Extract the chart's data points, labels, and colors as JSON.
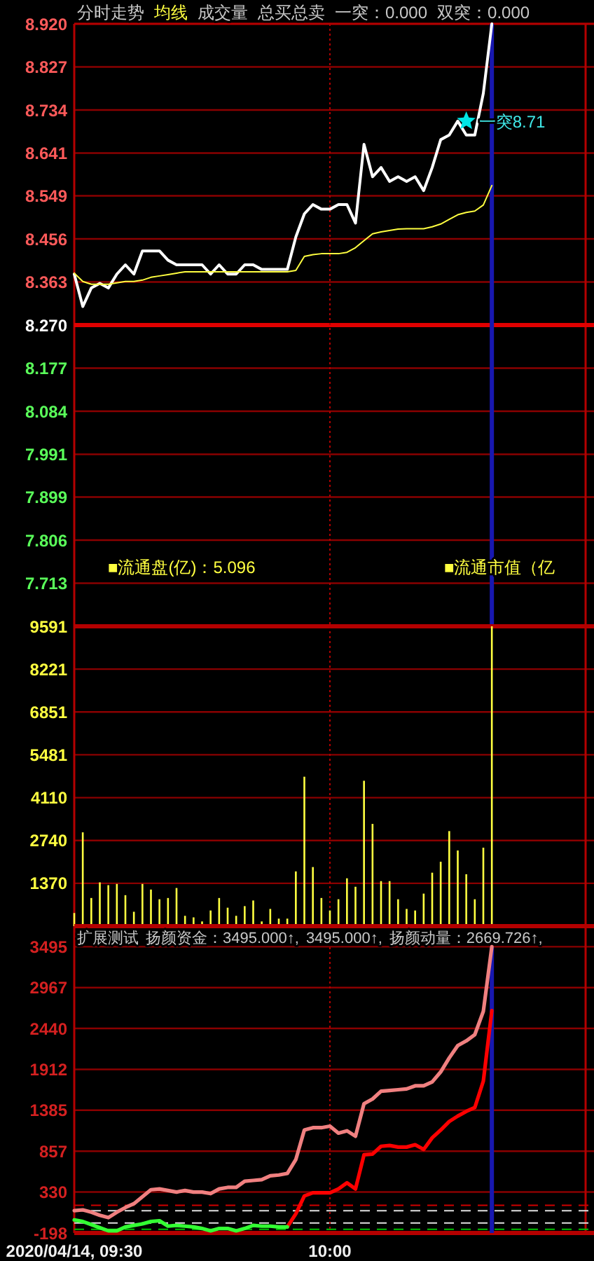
{
  "chart_data": [
    {
      "type": "line",
      "title": "分时走势",
      "legend": "top left",
      "grid": "y",
      "tick_labels": "y",
      "x": [
        "2020-04-14T09:30",
        "2020-04-14T09:31",
        "2020-04-14T09:32",
        "2020-04-14T09:33",
        "2020-04-14T09:34",
        "2020-04-14T09:35",
        "2020-04-14T09:36",
        "2020-04-14T09:37",
        "2020-04-14T09:38",
        "2020-04-14T09:39",
        "2020-04-14T09:40",
        "2020-04-14T09:41",
        "2020-04-14T09:42",
        "2020-04-14T09:43",
        "2020-04-14T09:44",
        "2020-04-14T09:45",
        "2020-04-14T09:46",
        "2020-04-14T09:47",
        "2020-04-14T09:48",
        "2020-04-14T09:49",
        "2020-04-14T09:50",
        "2020-04-14T09:51",
        "2020-04-14T09:52",
        "2020-04-14T09:53",
        "2020-04-14T09:54",
        "2020-04-14T09:55",
        "2020-04-14T09:56",
        "2020-04-14T09:57",
        "2020-04-14T09:58",
        "2020-04-14T09:59",
        "2020-04-14T10:00",
        "2020-04-14T10:01",
        "2020-04-14T10:02",
        "2020-04-14T10:03",
        "2020-04-14T10:04",
        "2020-04-14T10:05",
        "2020-04-14T10:06",
        "2020-04-14T10:07",
        "2020-04-14T10:08",
        "2020-04-14T10:09",
        "2020-04-14T10:10",
        "2020-04-14T10:11",
        "2020-04-14T10:12",
        "2020-04-14T10:13",
        "2020-04-14T10:14",
        "2020-04-14T10:15",
        "2020-04-14T10:16",
        "2020-04-14T10:17",
        "2020-04-14T10:18",
        "2020-04-14T10:19"
      ],
      "xlim": [
        "2020-04-14T09:30",
        "2020-04-14T10:30"
      ],
      "ylim": [
        7.62,
        8.92
      ],
      "yticks": [
        {
          "value": 8.92,
          "label": "8.920"
        },
        8.827,
        8.734,
        8.641,
        8.549,
        8.456,
        8.363,
        {
          "value": 8.27,
          "label": "8.270"
        },
        8.177,
        8.084,
        7.991,
        7.899,
        7.806,
        7.713
      ],
      "ref_lines": [
        {
          "axis": "y",
          "value": 8.27,
          "color": "#e00000"
        },
        {
          "axis": "x",
          "value": "2020-04-14T10:00",
          "color": "#b00000",
          "line_style": "dotted"
        },
        {
          "axis": "x",
          "value": "2020-04-14T10:19",
          "color": "#1818b0"
        }
      ],
      "series": [
        {
          "color": "#ffffff",
          "values": [
            8.38,
            8.31,
            8.35,
            8.36,
            8.35,
            8.38,
            8.4,
            8.38,
            8.43,
            8.43,
            8.43,
            8.41,
            8.4,
            8.4,
            8.4,
            8.4,
            8.38,
            8.4,
            8.38,
            8.38,
            8.4,
            8.4,
            8.39,
            8.39,
            8.39,
            8.39,
            8.46,
            8.51,
            8.53,
            8.52,
            8.52,
            8.53,
            8.53,
            8.49,
            8.66,
            8.59,
            8.61,
            8.58,
            8.59,
            8.58,
            8.59,
            8.56,
            8.61,
            8.67,
            8.68,
            8.71,
            8.68,
            8.68,
            8.77,
            8.92
          ]
        },
        {
          "name": "均线",
          "color": "#ffff40",
          "values": [
            8.382,
            8.364,
            8.358,
            8.358,
            8.358,
            8.361,
            8.364,
            8.364,
            8.367,
            8.373,
            8.376,
            8.379,
            8.382,
            8.385,
            8.385,
            8.385,
            8.385,
            8.385,
            8.385,
            8.385,
            8.385,
            8.385,
            8.385,
            8.385,
            8.385,
            8.385,
            8.388,
            8.418,
            8.422,
            8.424,
            8.424,
            8.424,
            8.427,
            8.437,
            8.452,
            8.467,
            8.471,
            8.474,
            8.477,
            8.478,
            8.478,
            8.478,
            8.482,
            8.488,
            8.498,
            8.508,
            8.513,
            8.516,
            8.529,
            8.571
          ]
        },
        {
          "type": "scatter",
          "marker": "star",
          "color": "#00e5e5",
          "x": [
            "2020-04-14T10:16"
          ],
          "values": [
            8.71
          ]
        }
      ],
      "annotations": [
        "成交量",
        "总买总卖",
        "一突：0.000",
        "双突：0.000",
        "■流通盘(亿)：5.096",
        "■流通市值（亿",
        {
          "text": "一突8.71",
          "x": "2020-04-14T10:16",
          "y": 8.71
        }
      ]
    },
    {
      "type": "bar",
      "grid": "y",
      "tick_labels": "y",
      "color": "#ffff40",
      "x": [
        "2020-04-14T09:30",
        "2020-04-14T09:31",
        "2020-04-14T09:32",
        "2020-04-14T09:33",
        "2020-04-14T09:34",
        "2020-04-14T09:35",
        "2020-04-14T09:36",
        "2020-04-14T09:37",
        "2020-04-14T09:38",
        "2020-04-14T09:39",
        "2020-04-14T09:40",
        "2020-04-14T09:41",
        "2020-04-14T09:42",
        "2020-04-14T09:43",
        "2020-04-14T09:44",
        "2020-04-14T09:45",
        "2020-04-14T09:46",
        "2020-04-14T09:47",
        "2020-04-14T09:48",
        "2020-04-14T09:49",
        "2020-04-14T09:50",
        "2020-04-14T09:51",
        "2020-04-14T09:52",
        "2020-04-14T09:53",
        "2020-04-14T09:54",
        "2020-04-14T09:55",
        "2020-04-14T09:56",
        "2020-04-14T09:57",
        "2020-04-14T09:58",
        "2020-04-14T09:59",
        "2020-04-14T10:00",
        "2020-04-14T10:01",
        "2020-04-14T10:02",
        "2020-04-14T10:03",
        "2020-04-14T10:04",
        "2020-04-14T10:05",
        "2020-04-14T10:06",
        "2020-04-14T10:07",
        "2020-04-14T10:08",
        "2020-04-14T10:09",
        "2020-04-14T10:10",
        "2020-04-14T10:11",
        "2020-04-14T10:12",
        "2020-04-14T10:13",
        "2020-04-14T10:14",
        "2020-04-14T10:15",
        "2020-04-14T10:16",
        "2020-04-14T10:17",
        "2020-04-14T10:18",
        "2020-04-14T10:19"
      ],
      "xlim": [
        "2020-04-14T09:30",
        "2020-04-14T10:30"
      ],
      "ylim": [
        0,
        9591
      ],
      "yticks": [
        1370,
        2740,
        4110,
        5481,
        6851,
        8221,
        9591
      ],
      "ref_lines": [
        {
          "axis": "x",
          "value": "2020-04-14T10:00",
          "color": "#b00000",
          "line_style": "dotted"
        }
      ],
      "values": [
        420,
        3000,
        900,
        1400,
        1310,
        1350,
        990,
        460,
        1350,
        1170,
        860,
        900,
        1220,
        330,
        280,
        150,
        500,
        900,
        590,
        330,
        640,
        820,
        150,
        550,
        240,
        240,
        1750,
        4780,
        1890,
        900,
        500,
        860,
        1530,
        1260,
        4650,
        3270,
        1440,
        1440,
        860,
        550,
        500,
        1040,
        1710,
        2060,
        3040,
        2420,
        1660,
        860,
        2510,
        9591
      ]
    },
    {
      "type": "line",
      "title": "扩展测试",
      "grid": "y",
      "x": [
        "2020-04-14T09:30",
        "2020-04-14T09:31",
        "2020-04-14T09:32",
        "2020-04-14T09:33",
        "2020-04-14T09:34",
        "2020-04-14T09:35",
        "2020-04-14T09:36",
        "2020-04-14T09:37",
        "2020-04-14T09:38",
        "2020-04-14T09:39",
        "2020-04-14T09:40",
        "2020-04-14T09:41",
        "2020-04-14T09:42",
        "2020-04-14T09:43",
        "2020-04-14T09:44",
        "2020-04-14T09:45",
        "2020-04-14T09:46",
        "2020-04-14T09:47",
        "2020-04-14T09:48",
        "2020-04-14T09:49",
        "2020-04-14T09:50",
        "2020-04-14T09:51",
        "2020-04-14T09:52",
        "2020-04-14T09:53",
        "2020-04-14T09:54",
        "2020-04-14T09:55",
        "2020-04-14T09:56",
        "2020-04-14T09:57",
        "2020-04-14T09:58",
        "2020-04-14T09:59",
        "2020-04-14T10:00",
        "2020-04-14T10:01",
        "2020-04-14T10:02",
        "2020-04-14T10:03",
        "2020-04-14T10:04",
        "2020-04-14T10:05",
        "2020-04-14T10:06",
        "2020-04-14T10:07",
        "2020-04-14T10:08",
        "2020-04-14T10:09",
        "2020-04-14T10:10",
        "2020-04-14T10:11",
        "2020-04-14T10:12",
        "2020-04-14T10:13",
        "2020-04-14T10:14",
        "2020-04-14T10:15",
        "2020-04-14T10:16",
        "2020-04-14T10:17",
        "2020-04-14T10:18",
        "2020-04-14T10:19"
      ],
      "xlim": [
        "2020-04-14T09:30",
        "2020-04-14T10:30"
      ],
      "xticks": [
        {
          "value": "2020-04-14T09:30",
          "label": "2020/04/14, 09:30"
        },
        {
          "value": "2020-04-14T10:00",
          "label": "10:00"
        }
      ],
      "ylim": [
        -198,
        3760
      ],
      "yticks": [
        {
          "value": -198,
          "label": "-198"
        },
        330,
        857,
        1385,
        1912,
        2440,
        2967,
        3495
      ],
      "ref_lines": [
        {
          "axis": "y",
          "value": 160,
          "color": "#d00000",
          "line_style": "dashed"
        },
        {
          "axis": "y",
          "value": 90,
          "color": "#e0e0e0",
          "line_style": "dashed"
        },
        {
          "axis": "y",
          "value": -70,
          "color": "#e0e0e0",
          "line_style": "dashed"
        },
        {
          "axis": "y",
          "value": -150,
          "color": "#00c000",
          "line_style": "dashed"
        },
        {
          "axis": "x",
          "value": "2020-04-14T10:00",
          "color": "#b00000",
          "line_style": "dotted"
        },
        {
          "axis": "x",
          "value": "2020-04-14T10:19",
          "color": "#1818b0"
        }
      ],
      "series": [
        {
          "color": "#f08080",
          "values": [
            90,
            100,
            70,
            30,
            0,
            70,
            130,
            180,
            270,
            360,
            370,
            350,
            330,
            350,
            330,
            330,
            310,
            370,
            390,
            390,
            470,
            480,
            490,
            540,
            550,
            570,
            750,
            1130,
            1160,
            1160,
            1180,
            1090,
            1120,
            1050,
            1470,
            1530,
            1630,
            1640,
            1650,
            1660,
            1700,
            1700,
            1750,
            1880,
            2060,
            2220,
            2280,
            2360,
            2660,
            3495
          ]
        },
        {
          "color": "#ff0000",
          "values": [
            null,
            null,
            null,
            null,
            null,
            null,
            null,
            null,
            null,
            null,
            null,
            null,
            null,
            null,
            null,
            null,
            null,
            null,
            null,
            null,
            null,
            null,
            null,
            null,
            null,
            -120,
            50,
            280,
            320,
            320,
            320,
            370,
            450,
            370,
            810,
            820,
            920,
            930,
            910,
            910,
            940,
            880,
            1030,
            1130,
            1240,
            1310,
            1370,
            1420,
            1760,
            2670
          ]
        },
        {
          "color": "#33ff33",
          "values": [
            -30,
            -50,
            -90,
            -130,
            -170,
            -170,
            -120,
            -100,
            -80,
            -50,
            -40,
            -110,
            -100,
            -110,
            -120,
            -140,
            -170,
            -140,
            -140,
            -170,
            -140,
            -100,
            -110,
            -110,
            -120,
            -120,
            null,
            null,
            null,
            null,
            null,
            null,
            null,
            null,
            null,
            null,
            null,
            null,
            null,
            null,
            null,
            null,
            null,
            null,
            null,
            null,
            null,
            null,
            null,
            null
          ]
        }
      ],
      "annotations": [
        "扬颜资金：3495.000↑,",
        "3495.000↑,",
        "扬颜动量：2669.726↑,"
      ]
    }
  ]
}
